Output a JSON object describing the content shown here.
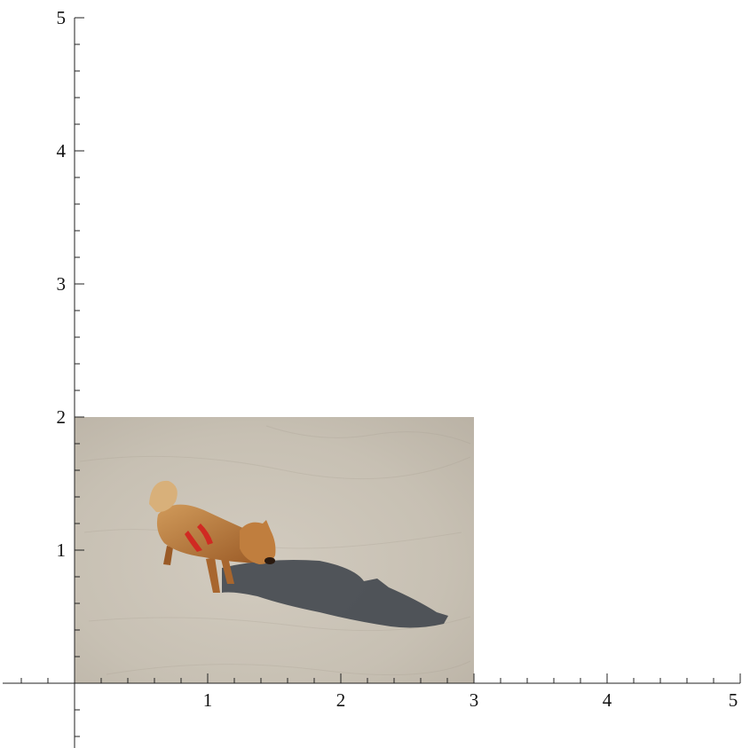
{
  "chart_data": {
    "type": "image-plot",
    "xlim": [
      -0.5,
      5
    ],
    "ylim": [
      -0.5,
      5
    ],
    "x_ticks": [
      "1",
      "2",
      "3",
      "4",
      "5"
    ],
    "y_ticks": [
      "1",
      "2",
      "3",
      "4",
      "5"
    ],
    "x_tick_values": [
      1,
      2,
      3,
      4,
      5
    ],
    "y_tick_values": [
      1,
      2,
      3,
      4,
      5
    ],
    "minor_step": 0.2,
    "image_extent": {
      "x": [
        0,
        3
      ],
      "y": [
        0,
        2
      ]
    },
    "image_subject": "shiba-inu dog standing on concrete ground with shadow",
    "colors": {
      "axis": "#222222",
      "ground": "#c9c2b6",
      "shadow": "#3a4048",
      "dog_fur": "#b8773a",
      "dog_collar": "#d02a22"
    }
  }
}
